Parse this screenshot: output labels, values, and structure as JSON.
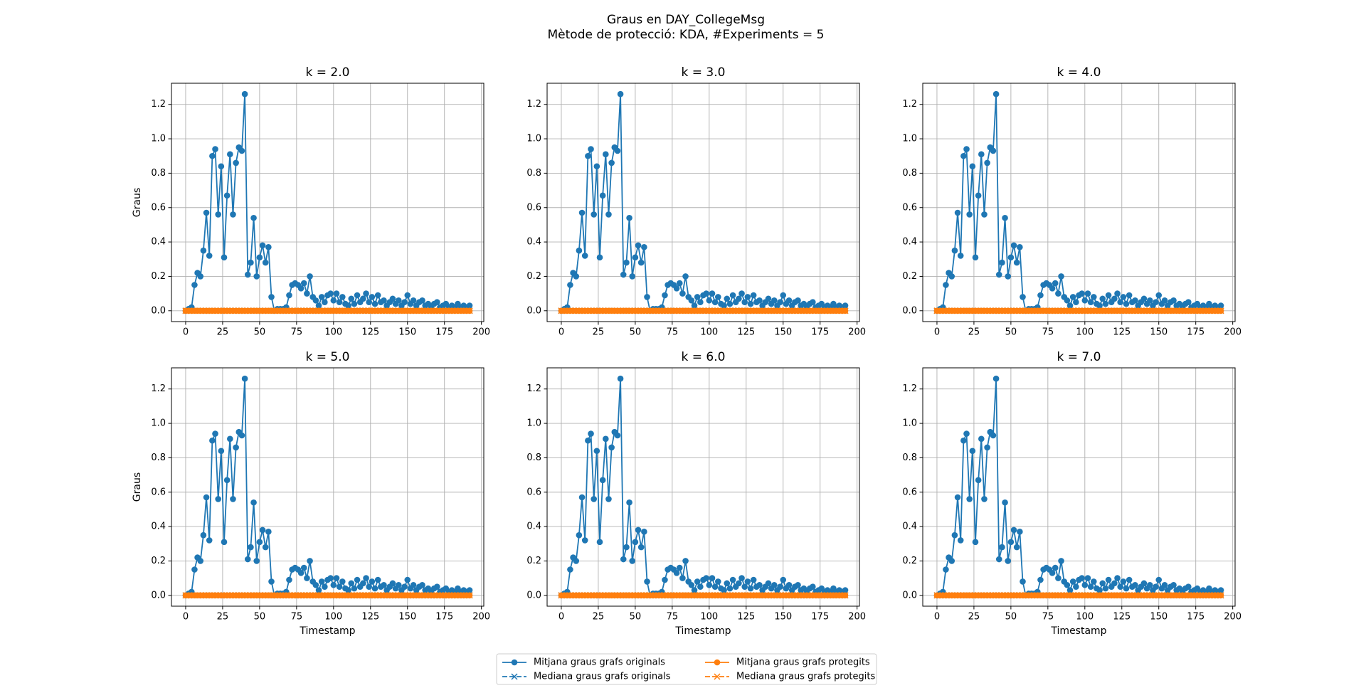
{
  "chart_data": {
    "type": "line",
    "title": "Graus en DAY_CollegeMsg",
    "subtitle": "Mètode de protecció: KDA, #Experiments = 5",
    "xlabel": "Timestamp",
    "ylabel": "Graus",
    "panels": [
      {
        "title": "k = 2.0"
      },
      {
        "title": "k = 3.0"
      },
      {
        "title": "k = 4.0"
      },
      {
        "title": "k = 5.0"
      },
      {
        "title": "k = 6.0"
      },
      {
        "title": "k = 7.0"
      }
    ],
    "xlim": [
      -9.6,
      201.6
    ],
    "ylim": [
      -0.063,
      1.323
    ],
    "xticks": [
      0,
      25,
      50,
      75,
      100,
      125,
      150,
      175,
      200
    ],
    "yticks": [
      {
        "value": 0,
        "label": "0.0"
      },
      0.2,
      0.4,
      0.6,
      0.8,
      {
        "value": 1,
        "label": "1.0"
      },
      1.2
    ],
    "grid": true,
    "legend": "lower center",
    "x": [
      0,
      2,
      4,
      6,
      8,
      10,
      12,
      14,
      16,
      18,
      20,
      22,
      24,
      26,
      28,
      30,
      32,
      34,
      36,
      38,
      40,
      42,
      44,
      46,
      48,
      50,
      52,
      54,
      56,
      58,
      60,
      62,
      64,
      66,
      68,
      70,
      72,
      74,
      76,
      78,
      80,
      82,
      84,
      86,
      88,
      90,
      92,
      94,
      96,
      98,
      100,
      102,
      104,
      106,
      108,
      110,
      112,
      114,
      116,
      118,
      120,
      122,
      124,
      126,
      128,
      130,
      132,
      134,
      136,
      138,
      140,
      142,
      144,
      146,
      148,
      150,
      152,
      154,
      156,
      158,
      160,
      162,
      164,
      166,
      168,
      170,
      172,
      174,
      176,
      178,
      180,
      182,
      184,
      186,
      188,
      190,
      192
    ],
    "series": [
      {
        "name": "Mitjana graus grafs originals",
        "color": "#1f77b4",
        "marker": "o",
        "linestyle": "solid",
        "values": [
          0,
          0.01,
          0.02,
          0.15,
          0.22,
          0.2,
          0.35,
          0.57,
          0.32,
          0.9,
          0.94,
          0.56,
          0.84,
          0.31,
          0.67,
          0.91,
          0.56,
          0.86,
          0.95,
          0.93,
          1.26,
          0.21,
          0.28,
          0.54,
          0.2,
          0.31,
          0.38,
          0.28,
          0.37,
          0.08,
          0,
          0.01,
          0.01,
          0.01,
          0.02,
          0.09,
          0.15,
          0.16,
          0.15,
          0.13,
          0.16,
          0.1,
          0.2,
          0.08,
          0.06,
          0.03,
          0.08,
          0.05,
          0.09,
          0.1,
          0.06,
          0.1,
          0.05,
          0.08,
          0.04,
          0.03,
          0.07,
          0.04,
          0.09,
          0.05,
          0.07,
          0.1,
          0.05,
          0.08,
          0.04,
          0.09,
          0.05,
          0.06,
          0.03,
          0.05,
          0.07,
          0.04,
          0.06,
          0.03,
          0.05,
          0.09,
          0.04,
          0.06,
          0.03,
          0.05,
          0.06,
          0.03,
          0.04,
          0.02,
          0.04,
          0.05,
          0.02,
          0.03,
          0.04,
          0.02,
          0.03,
          0.02,
          0.04,
          0.02,
          0.03,
          0.02,
          0.03
        ]
      },
      {
        "name": "Mediana graus grafs originals",
        "color": "#1f77b4",
        "marker": "x",
        "linestyle": "dashed",
        "values": [
          0,
          0,
          0,
          0,
          0,
          0,
          0,
          0,
          0,
          0,
          0,
          0,
          0,
          0,
          0,
          0,
          0,
          0,
          0,
          0,
          0,
          0,
          0,
          0,
          0,
          0,
          0,
          0,
          0,
          0,
          0,
          0,
          0,
          0,
          0,
          0,
          0,
          0,
          0,
          0,
          0,
          0,
          0,
          0,
          0,
          0,
          0,
          0,
          0,
          0,
          0,
          0,
          0,
          0,
          0,
          0,
          0,
          0,
          0,
          0,
          0,
          0,
          0,
          0,
          0,
          0,
          0,
          0,
          0,
          0,
          0,
          0,
          0,
          0,
          0,
          0,
          0,
          0,
          0,
          0,
          0,
          0,
          0,
          0,
          0,
          0,
          0,
          0,
          0,
          0,
          0,
          0,
          0,
          0,
          0,
          0,
          0
        ]
      },
      {
        "name": "Mitjana graus grafs protegits",
        "color": "#ff7f0e",
        "marker": "o",
        "linestyle": "solid",
        "values": [
          0,
          0,
          0,
          0,
          0,
          0,
          0,
          0,
          0,
          0,
          0,
          0,
          0,
          0,
          0,
          0,
          0,
          0,
          0,
          0,
          0,
          0,
          0,
          0,
          0,
          0,
          0,
          0,
          0,
          0,
          0,
          0,
          0,
          0,
          0,
          0,
          0,
          0,
          0,
          0,
          0,
          0,
          0,
          0,
          0,
          0,
          0,
          0,
          0,
          0,
          0,
          0,
          0,
          0,
          0,
          0,
          0,
          0,
          0,
          0,
          0,
          0,
          0,
          0,
          0,
          0,
          0,
          0,
          0,
          0,
          0,
          0,
          0,
          0,
          0,
          0,
          0,
          0,
          0,
          0,
          0,
          0,
          0,
          0,
          0,
          0,
          0,
          0,
          0,
          0,
          0,
          0,
          0,
          0,
          0,
          0,
          0
        ]
      },
      {
        "name": "Mediana graus grafs protegits",
        "color": "#ff7f0e",
        "marker": "x",
        "linestyle": "dashed",
        "values": [
          0,
          0,
          0,
          0,
          0,
          0,
          0,
          0,
          0,
          0,
          0,
          0,
          0,
          0,
          0,
          0,
          0,
          0,
          0,
          0,
          0,
          0,
          0,
          0,
          0,
          0,
          0,
          0,
          0,
          0,
          0,
          0,
          0,
          0,
          0,
          0,
          0,
          0,
          0,
          0,
          0,
          0,
          0,
          0,
          0,
          0,
          0,
          0,
          0,
          0,
          0,
          0,
          0,
          0,
          0,
          0,
          0,
          0,
          0,
          0,
          0,
          0,
          0,
          0,
          0,
          0,
          0,
          0,
          0,
          0,
          0,
          0,
          0,
          0,
          0,
          0,
          0,
          0,
          0,
          0,
          0,
          0,
          0,
          0,
          0,
          0,
          0,
          0,
          0,
          0,
          0,
          0,
          0,
          0,
          0,
          0,
          0
        ]
      }
    ]
  }
}
